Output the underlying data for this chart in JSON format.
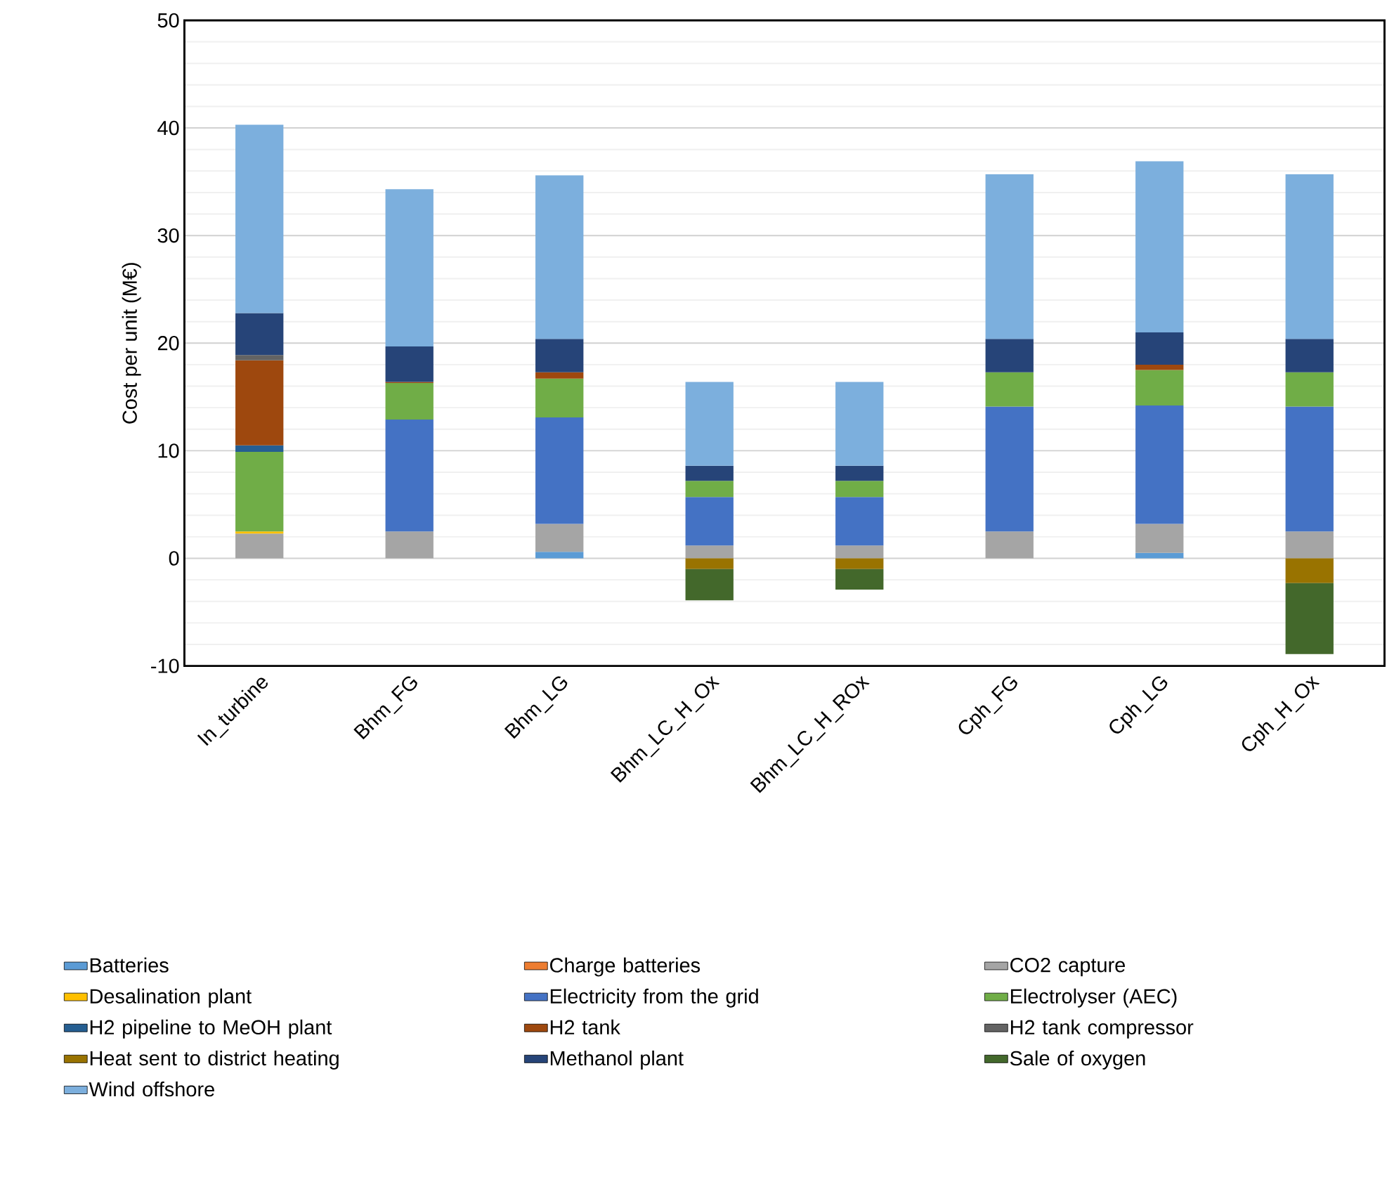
{
  "chart_data": {
    "type": "bar",
    "stacked": true,
    "ylabel": "Cost per unit (M€)",
    "categories": [
      "In_turbine",
      "Bhm_FG",
      "Bhm_LG",
      "Bhm_LC_H_Ox",
      "Bhm_LC_H_ROx",
      "Cph_FG",
      "Cph_LG",
      "Cph_H_Ox"
    ],
    "ylim": [
      -10,
      50
    ],
    "yticks": [
      -10,
      0,
      10,
      20,
      30,
      40,
      50
    ],
    "grid": "y",
    "legend": "bottom",
    "series": [
      {
        "name": "Batteries",
        "color": "#5b9bd5",
        "values": [
          0,
          0,
          0.6,
          0,
          0,
          0,
          0.5,
          0
        ]
      },
      {
        "name": "Charge batteries",
        "color": "#ed7d31",
        "values": [
          0,
          0,
          0,
          0,
          0,
          0,
          0,
          0
        ]
      },
      {
        "name": "CO2 capture",
        "color": "#a5a5a5",
        "values": [
          2.3,
          2.5,
          2.6,
          1.2,
          1.2,
          2.5,
          2.7,
          2.5
        ]
      },
      {
        "name": "Desalination plant",
        "color": "#ffc000",
        "values": [
          0.2,
          0,
          0,
          0,
          0,
          0,
          0,
          0
        ]
      },
      {
        "name": "Electricity from the grid",
        "color": "#4472c4",
        "values": [
          0,
          10.4,
          9.9,
          4.5,
          4.5,
          11.6,
          11.0,
          11.6
        ]
      },
      {
        "name": "Electrolyser (AEC)",
        "color": "#70ad47",
        "values": [
          7.4,
          3.4,
          3.6,
          1.5,
          1.5,
          3.2,
          3.3,
          3.2
        ]
      },
      {
        "name": "H2 pipeline to MeOH plant",
        "color": "#255e91",
        "values": [
          0.6,
          0,
          0,
          0,
          0,
          0,
          0,
          0
        ]
      },
      {
        "name": "H2 tank",
        "color": "#9e480e",
        "values": [
          7.9,
          0.1,
          0.6,
          0,
          0,
          0,
          0.5,
          0
        ]
      },
      {
        "name": "H2 tank compressor",
        "color": "#636363",
        "values": [
          0.5,
          0,
          0,
          0,
          0,
          0,
          0,
          0
        ]
      },
      {
        "name": "Heat sent to district heating",
        "color": "#997300",
        "values": [
          0,
          0,
          0,
          -1.0,
          -1.0,
          0,
          0,
          -2.3
        ]
      },
      {
        "name": "Methanol plant",
        "color": "#264478",
        "values": [
          3.9,
          3.3,
          3.1,
          1.4,
          1.4,
          3.1,
          3.0,
          3.1
        ]
      },
      {
        "name": "Sale of oxygen",
        "color": "#43682b",
        "values": [
          0,
          0,
          0,
          -2.9,
          -1.9,
          0,
          0,
          -6.6
        ]
      },
      {
        "name": "Wind offshore",
        "color": "#7cafdd",
        "values": [
          17.5,
          14.6,
          15.2,
          7.8,
          7.8,
          15.3,
          15.9,
          15.3
        ]
      }
    ]
  }
}
